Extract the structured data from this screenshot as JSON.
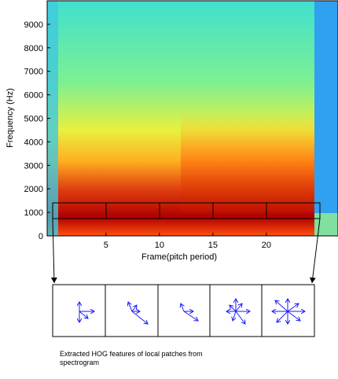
{
  "chart_data": {
    "type": "heatmap",
    "xlabel": "Frame(pitch period)",
    "ylabel": "Frequency (Hz)",
    "xlim": [
      -0.5,
      26.7
    ],
    "xticks": [
      5,
      10,
      15,
      20
    ],
    "ylim": [
      0,
      10000
    ],
    "yticks": [
      0,
      1000,
      2000,
      3000,
      4000,
      5000,
      6000,
      7000,
      8000,
      9000
    ],
    "caption": [
      "Extracted HOG features of local patches from",
      "spectrogram"
    ]
  }
}
